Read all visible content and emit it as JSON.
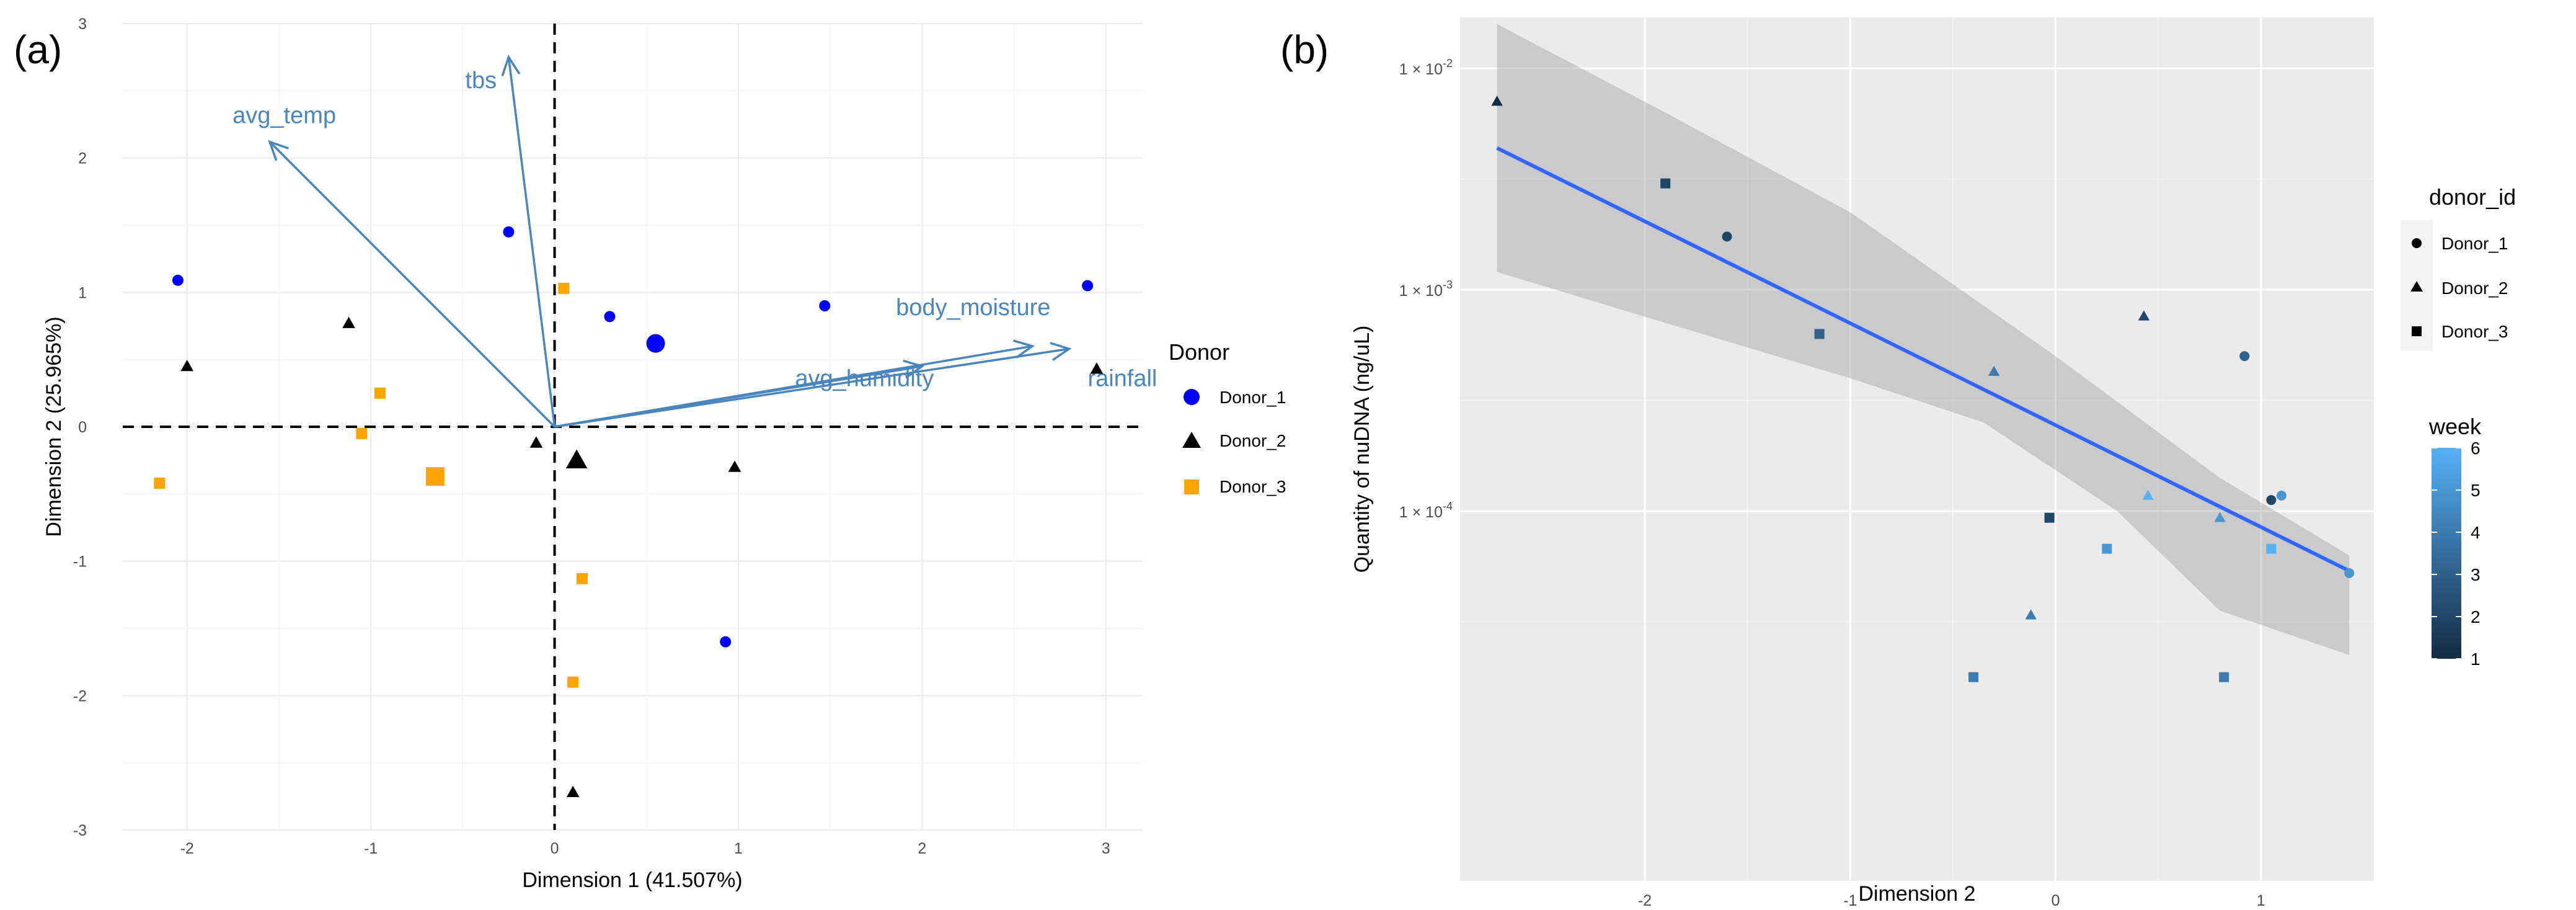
{
  "chart_data": [
    {
      "panel": "(a)",
      "type": "scatter",
      "title": "",
      "xlabel": "Dimension 1 (41.507%)",
      "ylabel": "Dimension 2 (25.965%)",
      "xlim": [
        -2.35,
        3.2
      ],
      "ylim": [
        -3.0,
        3.0
      ],
      "xticks": [
        -2,
        -1,
        0,
        1,
        2,
        3
      ],
      "yticks": [
        -3,
        -2,
        -1,
        0,
        1,
        2,
        3
      ],
      "xtick_labels": [
        "-2",
        "-1",
        "0",
        "1",
        "2",
        "3"
      ],
      "ytick_labels": [
        "-3",
        "-2",
        "-1",
        "0",
        "1",
        "2",
        "3"
      ],
      "legend_title": "Donor",
      "colors": {
        "Donor_1": "#0000ff",
        "Donor_2": "#000000",
        "Donor_3": "#ffa500",
        "arrow": "#4a86bd"
      },
      "series": [
        {
          "name": "Donor_1",
          "shape": "circle",
          "points": [
            [
              -2.05,
              1.09
            ],
            [
              -0.25,
              1.45
            ],
            [
              0.3,
              0.82
            ],
            [
              1.47,
              0.9
            ],
            [
              2.9,
              1.05
            ],
            [
              0.93,
              -1.6
            ]
          ],
          "centroid": [
            0.55,
            0.62
          ]
        },
        {
          "name": "Donor_2",
          "shape": "triangle",
          "points": [
            [
              -2.0,
              0.45
            ],
            [
              -1.12,
              0.77
            ],
            [
              -0.1,
              -0.12
            ],
            [
              0.98,
              -0.3
            ],
            [
              2.95,
              0.43
            ],
            [
              0.1,
              -2.72
            ]
          ],
          "centroid": [
            0.12,
            -0.25
          ]
        },
        {
          "name": "Donor_3",
          "shape": "square",
          "points": [
            [
              -2.15,
              -0.42
            ],
            [
              -0.95,
              0.25
            ],
            [
              -1.05,
              -0.05
            ],
            [
              0.05,
              1.03
            ],
            [
              0.15,
              -1.13
            ],
            [
              0.1,
              -1.9
            ]
          ],
          "centroid": [
            -0.65,
            -0.37
          ]
        }
      ],
      "arrows": [
        {
          "label": "tbs",
          "end": [
            -0.25,
            2.75
          ]
        },
        {
          "label": "avg_temp",
          "end": [
            -1.55,
            2.12
          ]
        },
        {
          "label": "body_moisture",
          "end": [
            2.6,
            0.6
          ]
        },
        {
          "label": "avg_humidity",
          "end": [
            2.0,
            0.45
          ]
        },
        {
          "label": "rainfall",
          "end": [
            2.8,
            0.58
          ]
        }
      ]
    },
    {
      "panel": "(b)",
      "type": "scatter",
      "title": "",
      "xlabel": "Dimension 2",
      "ylabel": "Quantity of nuDNA (ng/uL)",
      "xlim": [
        -2.9,
        1.55
      ],
      "ylim_log10": [
        -5.67,
        -1.77
      ],
      "y_scale": "log10",
      "xticks": [
        -2,
        -1,
        0,
        1
      ],
      "xtick_labels": [
        "-2",
        "-1",
        "0",
        "1"
      ],
      "yticks_log10": [
        -2,
        -3,
        -4
      ],
      "ytick_labels": [
        "1 × 10",
        "1 × 10",
        "1 × 10"
      ],
      "ytick_exponents": [
        "-2",
        "-3",
        "-4"
      ],
      "legend_shape_title": "donor_id",
      "legend_color_title": "week",
      "legend_shape_entries": [
        {
          "name": "Donor_1",
          "shape": "circle"
        },
        {
          "name": "Donor_2",
          "shape": "triangle"
        },
        {
          "name": "Donor_3",
          "shape": "square"
        }
      ],
      "colorbar": {
        "min": 1,
        "max": 6,
        "ticks": [
          "1",
          "2",
          "3",
          "4",
          "5",
          "6"
        ],
        "low_color": "#132b43",
        "high_color": "#56b1f7"
      },
      "trend": {
        "x0": -2.72,
        "x1": 1.43,
        "log10_y0": -2.36,
        "log10_y1": -4.27,
        "line_color": "#3366ff",
        "band_upper": [
          [
            -2.72,
            -1.8
          ],
          [
            -1.9,
            -2.2
          ],
          [
            -1.0,
            -2.65
          ],
          [
            0.0,
            -3.3
          ],
          [
            0.8,
            -3.85
          ],
          [
            1.43,
            -4.2
          ]
        ],
        "band_lower": [
          [
            -2.72,
            -2.92
          ],
          [
            -1.9,
            -3.15
          ],
          [
            -1.0,
            -3.4
          ],
          [
            -0.35,
            -3.6
          ],
          [
            0.3,
            -4.0
          ],
          [
            0.8,
            -4.45
          ],
          [
            1.43,
            -4.65
          ]
        ]
      },
      "points": [
        {
          "donor": "Donor_2",
          "week": 1,
          "x": -2.72,
          "log10_y": -2.15
        },
        {
          "donor": "Donor_3",
          "week": 2,
          "x": -1.9,
          "log10_y": -2.52
        },
        {
          "donor": "Donor_1",
          "week": 2,
          "x": -1.6,
          "log10_y": -2.76
        },
        {
          "donor": "Donor_3",
          "week": 3,
          "x": -1.15,
          "log10_y": -3.2
        },
        {
          "donor": "Donor_2",
          "week": 4,
          "x": -0.3,
          "log10_y": -3.37
        },
        {
          "donor": "Donor_2",
          "week": 2,
          "x": 0.43,
          "log10_y": -3.12
        },
        {
          "donor": "Donor_1",
          "week": 3,
          "x": 0.92,
          "log10_y": -3.3
        },
        {
          "donor": "Donor_3",
          "week": 2,
          "x": -0.03,
          "log10_y": -4.03
        },
        {
          "donor": "Donor_3",
          "week": 5,
          "x": 0.25,
          "log10_y": -4.17
        },
        {
          "donor": "Donor_2",
          "week": 6,
          "x": 0.45,
          "log10_y": -3.93
        },
        {
          "donor": "Donor_2",
          "week": 5,
          "x": 0.8,
          "log10_y": -4.03
        },
        {
          "donor": "Donor_1",
          "week": 2,
          "x": 1.05,
          "log10_y": -3.95
        },
        {
          "donor": "Donor_3",
          "week": 6,
          "x": 1.05,
          "log10_y": -4.17
        },
        {
          "donor": "Donor_1",
          "week": 5,
          "x": 1.1,
          "log10_y": -3.93
        },
        {
          "donor": "Donor_1",
          "week": 5,
          "x": 1.43,
          "log10_y": -4.28
        },
        {
          "donor": "Donor_2",
          "week": 4,
          "x": -0.12,
          "log10_y": -4.47
        },
        {
          "donor": "Donor_3",
          "week": 4,
          "x": -0.4,
          "log10_y": -4.75
        },
        {
          "donor": "Donor_3",
          "week": 4,
          "x": 0.82,
          "log10_y": -4.75
        }
      ]
    }
  ]
}
